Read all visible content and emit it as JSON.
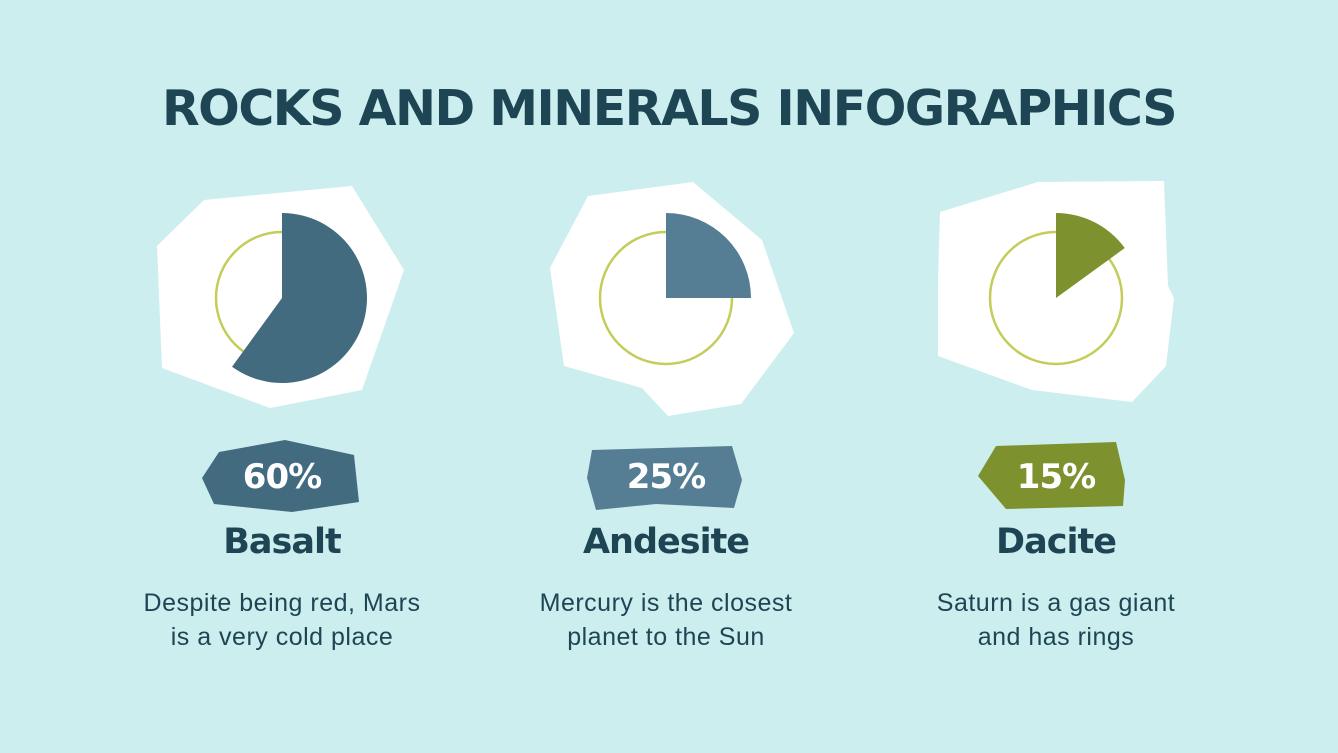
{
  "title": "ROCKS AND MINERALS INFOGRAPHICS",
  "colors": {
    "background": "#cdeeef",
    "text": "#1e4553",
    "ring": "#c4cc5a",
    "blob": "#ffffff"
  },
  "chart_data": [
    {
      "type": "pie",
      "percent_label": "60%",
      "name": "Basalt",
      "description_lines": [
        "Despite being red, Mars",
        "is a very cold place"
      ],
      "value": 60,
      "color": "#436b80"
    },
    {
      "type": "pie",
      "percent_label": "25%",
      "name": "Andesite",
      "description_lines": [
        "Mercury is the closest",
        "planet to the Sun"
      ],
      "value": 25,
      "color": "#557e95"
    },
    {
      "type": "pie",
      "percent_label": "15%",
      "name": "Dacite",
      "description_lines": [
        "Saturn is a gas giant",
        "and has rings"
      ],
      "value": 15,
      "color": "#7d912f"
    }
  ]
}
